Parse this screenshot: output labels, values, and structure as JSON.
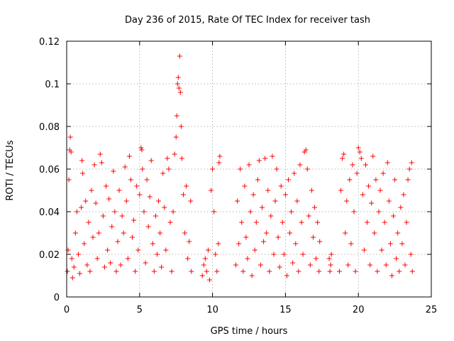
{
  "chart_data": {
    "type": "scatter",
    "title": "Day 236 of 2015, Rate Of TEC Index for receiver tash",
    "xlabel": "GPS time / hours",
    "ylabel": "ROTI / TECUs",
    "xlim": [
      0,
      25
    ],
    "ylim": [
      0,
      0.12
    ],
    "xticks": [
      0,
      5,
      10,
      15,
      20,
      25
    ],
    "xtick_labels": [
      "0",
      "5",
      "10",
      "15",
      "20",
      "25"
    ],
    "yticks": [
      0,
      0.02,
      0.04,
      0.06,
      0.08,
      0.1,
      0.12
    ],
    "ytick_labels": [
      "0",
      "0.02",
      "0.04",
      "0.06",
      "0.08",
      "0.1",
      "0.12"
    ],
    "grid": true,
    "marker": "plus",
    "color": "#ff0000",
    "data_gaps_hours": [
      [
        8.6,
        9.2
      ],
      [
        10.5,
        11.5
      ],
      [
        17.4,
        17.9
      ],
      [
        18.2,
        18.6
      ]
    ],
    "series": [
      {
        "name": "tash",
        "points": [
          [
            0.05,
            0.012
          ],
          [
            0.1,
            0.022
          ],
          [
            0.15,
            0.055
          ],
          [
            0.2,
            0.069
          ],
          [
            0.25,
            0.075
          ],
          [
            0.3,
            0.068
          ],
          [
            0.35,
            0.018
          ],
          [
            0.4,
            0.009
          ],
          [
            0.5,
            0.014
          ],
          [
            0.6,
            0.03
          ],
          [
            0.7,
            0.04
          ],
          [
            0.8,
            0.02
          ],
          [
            0.9,
            0.011
          ],
          [
            1.0,
            0.042
          ],
          [
            1.05,
            0.064
          ],
          [
            1.1,
            0.058
          ],
          [
            1.2,
            0.025
          ],
          [
            1.3,
            0.045
          ],
          [
            1.4,
            0.015
          ],
          [
            1.5,
            0.035
          ],
          [
            1.6,
            0.012
          ],
          [
            1.7,
            0.05
          ],
          [
            1.8,
            0.028
          ],
          [
            1.9,
            0.062
          ],
          [
            2.0,
            0.044
          ],
          [
            2.1,
            0.018
          ],
          [
            2.2,
            0.03
          ],
          [
            2.3,
            0.067
          ],
          [
            2.4,
            0.063
          ],
          [
            2.5,
            0.038
          ],
          [
            2.6,
            0.014
          ],
          [
            2.7,
            0.052
          ],
          [
            2.8,
            0.022
          ],
          [
            2.9,
            0.046
          ],
          [
            3.0,
            0.016
          ],
          [
            3.1,
            0.033
          ],
          [
            3.2,
            0.059
          ],
          [
            3.3,
            0.04
          ],
          [
            3.4,
            0.012
          ],
          [
            3.5,
            0.026
          ],
          [
            3.6,
            0.05
          ],
          [
            3.7,
            0.015
          ],
          [
            3.8,
            0.038
          ],
          [
            3.9,
            0.03
          ],
          [
            4.0,
            0.061
          ],
          [
            4.1,
            0.045
          ],
          [
            4.2,
            0.018
          ],
          [
            4.3,
            0.066
          ],
          [
            4.4,
            0.055
          ],
          [
            4.5,
            0.028
          ],
          [
            4.6,
            0.036
          ],
          [
            4.7,
            0.012
          ],
          [
            4.8,
            0.052
          ],
          [
            4.9,
            0.022
          ],
          [
            5.0,
            0.048
          ],
          [
            5.1,
            0.07
          ],
          [
            5.15,
            0.069
          ],
          [
            5.2,
            0.06
          ],
          [
            5.3,
            0.04
          ],
          [
            5.4,
            0.016
          ],
          [
            5.5,
            0.055
          ],
          [
            5.6,
            0.033
          ],
          [
            5.7,
            0.047
          ],
          [
            5.8,
            0.064
          ],
          [
            5.9,
            0.025
          ],
          [
            6.0,
            0.012
          ],
          [
            6.1,
            0.038
          ],
          [
            6.2,
            0.02
          ],
          [
            6.3,
            0.045
          ],
          [
            6.4,
            0.03
          ],
          [
            6.5,
            0.014
          ],
          [
            6.6,
            0.058
          ],
          [
            6.7,
            0.042
          ],
          [
            6.8,
            0.022
          ],
          [
            6.9,
            0.065
          ],
          [
            7.0,
            0.06
          ],
          [
            7.1,
            0.035
          ],
          [
            7.2,
            0.012
          ],
          [
            7.3,
            0.04
          ],
          [
            7.4,
            0.067
          ],
          [
            7.5,
            0.075
          ],
          [
            7.55,
            0.085
          ],
          [
            7.6,
            0.1
          ],
          [
            7.65,
            0.103
          ],
          [
            7.7,
            0.098
          ],
          [
            7.75,
            0.113
          ],
          [
            7.8,
            0.096
          ],
          [
            7.85,
            0.08
          ],
          [
            7.9,
            0.065
          ],
          [
            8.0,
            0.048
          ],
          [
            8.1,
            0.03
          ],
          [
            8.2,
            0.052
          ],
          [
            8.3,
            0.018
          ],
          [
            8.4,
            0.026
          ],
          [
            8.5,
            0.045
          ],
          [
            8.55,
            0.012
          ],
          [
            9.3,
            0.01
          ],
          [
            9.4,
            0.015
          ],
          [
            9.5,
            0.018
          ],
          [
            9.6,
            0.012
          ],
          [
            9.7,
            0.022
          ],
          [
            9.8,
            0.008
          ],
          [
            9.9,
            0.05
          ],
          [
            10.0,
            0.06
          ],
          [
            10.1,
            0.04
          ],
          [
            10.2,
            0.02
          ],
          [
            10.3,
            0.012
          ],
          [
            10.4,
            0.025
          ],
          [
            10.45,
            0.063
          ],
          [
            10.5,
            0.066
          ],
          [
            11.6,
            0.015
          ],
          [
            11.7,
            0.045
          ],
          [
            11.8,
            0.025
          ],
          [
            11.9,
            0.06
          ],
          [
            12.0,
            0.035
          ],
          [
            12.1,
            0.012
          ],
          [
            12.2,
            0.052
          ],
          [
            12.3,
            0.028
          ],
          [
            12.4,
            0.018
          ],
          [
            12.5,
            0.062
          ],
          [
            12.6,
            0.04
          ],
          [
            12.7,
            0.01
          ],
          [
            12.8,
            0.048
          ],
          [
            12.9,
            0.022
          ],
          [
            13.0,
            0.035
          ],
          [
            13.1,
            0.055
          ],
          [
            13.2,
            0.064
          ],
          [
            13.3,
            0.015
          ],
          [
            13.4,
            0.042
          ],
          [
            13.5,
            0.026
          ],
          [
            13.6,
            0.065
          ],
          [
            13.7,
            0.03
          ],
          [
            13.8,
            0.05
          ],
          [
            13.9,
            0.012
          ],
          [
            14.0,
            0.038
          ],
          [
            14.1,
            0.066
          ],
          [
            14.2,
            0.02
          ],
          [
            14.3,
            0.045
          ],
          [
            14.4,
            0.06
          ],
          [
            14.5,
            0.028
          ],
          [
            14.6,
            0.014
          ],
          [
            14.7,
            0.052
          ],
          [
            14.8,
            0.035
          ],
          [
            14.9,
            0.02
          ],
          [
            15.0,
            0.048
          ],
          [
            15.1,
            0.01
          ],
          [
            15.2,
            0.055
          ],
          [
            15.3,
            0.03
          ],
          [
            15.4,
            0.04
          ],
          [
            15.5,
            0.016
          ],
          [
            15.6,
            0.058
          ],
          [
            15.7,
            0.025
          ],
          [
            15.8,
            0.045
          ],
          [
            15.9,
            0.012
          ],
          [
            16.0,
            0.062
          ],
          [
            16.1,
            0.035
          ],
          [
            16.2,
            0.02
          ],
          [
            16.3,
            0.068
          ],
          [
            16.4,
            0.069
          ],
          [
            16.5,
            0.06
          ],
          [
            16.6,
            0.038
          ],
          [
            16.7,
            0.015
          ],
          [
            16.8,
            0.05
          ],
          [
            16.9,
            0.028
          ],
          [
            17.0,
            0.042
          ],
          [
            17.1,
            0.018
          ],
          [
            17.2,
            0.035
          ],
          [
            17.3,
            0.012
          ],
          [
            17.35,
            0.026
          ],
          [
            18.0,
            0.018
          ],
          [
            18.05,
            0.012
          ],
          [
            18.1,
            0.015
          ],
          [
            18.15,
            0.02
          ],
          [
            18.7,
            0.012
          ],
          [
            18.8,
            0.05
          ],
          [
            18.9,
            0.065
          ],
          [
            19.0,
            0.067
          ],
          [
            19.1,
            0.03
          ],
          [
            19.2,
            0.045
          ],
          [
            19.3,
            0.015
          ],
          [
            19.4,
            0.055
          ],
          [
            19.5,
            0.025
          ],
          [
            19.6,
            0.062
          ],
          [
            19.7,
            0.04
          ],
          [
            19.8,
            0.012
          ],
          [
            19.9,
            0.058
          ],
          [
            20.0,
            0.07
          ],
          [
            20.1,
            0.068
          ],
          [
            20.2,
            0.065
          ],
          [
            20.3,
            0.048
          ],
          [
            20.4,
            0.022
          ],
          [
            20.5,
            0.062
          ],
          [
            20.6,
            0.035
          ],
          [
            20.7,
            0.052
          ],
          [
            20.8,
            0.015
          ],
          [
            20.9,
            0.044
          ],
          [
            21.0,
            0.066
          ],
          [
            21.1,
            0.03
          ],
          [
            21.2,
            0.055
          ],
          [
            21.3,
            0.012
          ],
          [
            21.4,
            0.04
          ],
          [
            21.5,
            0.05
          ],
          [
            21.6,
            0.022
          ],
          [
            21.7,
            0.058
          ],
          [
            21.8,
            0.035
          ],
          [
            21.9,
            0.015
          ],
          [
            22.0,
            0.063
          ],
          [
            22.1,
            0.045
          ],
          [
            22.2,
            0.025
          ],
          [
            22.3,
            0.01
          ],
          [
            22.4,
            0.038
          ],
          [
            22.5,
            0.055
          ],
          [
            22.6,
            0.018
          ],
          [
            22.7,
            0.03
          ],
          [
            22.8,
            0.012
          ],
          [
            22.9,
            0.042
          ],
          [
            23.0,
            0.025
          ],
          [
            23.1,
            0.048
          ],
          [
            23.2,
            0.015
          ],
          [
            23.3,
            0.035
          ],
          [
            23.4,
            0.055
          ],
          [
            23.5,
            0.06
          ],
          [
            23.6,
            0.02
          ],
          [
            23.65,
            0.063
          ],
          [
            23.7,
            0.012
          ]
        ]
      }
    ]
  }
}
